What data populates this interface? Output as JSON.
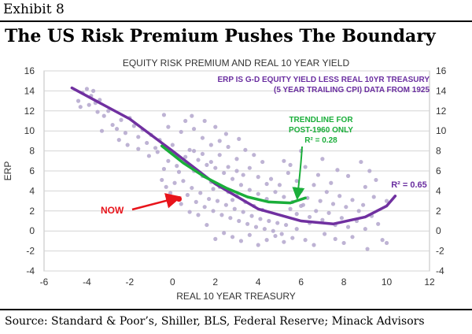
{
  "exhibit_label": "Exhibit 8",
  "headline": "The US Risk Premium Pushes The Boundary",
  "source": "Source: Standard & Poor’s, Shiller, BLS, Federal Reserve; Minack Advisors",
  "chart_data": {
    "type": "scatter",
    "title": "EQUITY RISK PREMIUM AND REAL 10 YEAR YIELD",
    "xlabel": "REAL 10 YEAR TREASURY",
    "ylabel": "ERP",
    "xlim": [
      -6,
      12
    ],
    "ylim": [
      -4,
      16
    ],
    "xticks": [
      -6,
      -4,
      -2,
      0,
      2,
      4,
      6,
      8,
      10,
      12
    ],
    "yticks": [
      -4,
      -2,
      0,
      2,
      4,
      6,
      8,
      10,
      12,
      14,
      16
    ],
    "grid": true,
    "right_axis": true,
    "annotations": {
      "note_line1": "ERP IS G-D EQUITY YIELD LESS REAL 10YR TREASURY",
      "note_line2": "(5 YEAR TRAILING CPI) DATA FROM 1925",
      "green_line1": "TRENDLINE FOR",
      "green_line2": "POST-1960 ONLY",
      "green_r2": "R² = 0.28",
      "purple_r2": "R² = 0.65",
      "now_label": "NOW"
    },
    "colors": {
      "scatter": "#b3a6cd",
      "purple": "#7030a0",
      "green": "#1aae3a",
      "now": "#e8141b",
      "note": "#6a2ea0"
    },
    "series": [
      {
        "kind": "scatter",
        "points": [
          [
            -4.4,
            13.0
          ],
          [
            -4.2,
            13.8
          ],
          [
            -4.0,
            14.2
          ],
          [
            -3.8,
            13.5
          ],
          [
            -3.6,
            12.8
          ],
          [
            -3.5,
            11.9
          ],
          [
            -4.3,
            12.4
          ],
          [
            -3.9,
            12.6
          ],
          [
            -3.7,
            14.0
          ],
          [
            -3.4,
            13.1
          ],
          [
            -3.2,
            11.5
          ],
          [
            -3.0,
            12.0
          ],
          [
            -2.8,
            10.6
          ],
          [
            -2.6,
            10.2
          ],
          [
            -3.3,
            10.0
          ],
          [
            -2.4,
            11.1
          ],
          [
            -2.2,
            9.8
          ],
          [
            -2.0,
            11.3
          ],
          [
            -1.8,
            10.5
          ],
          [
            -1.6,
            9.4
          ],
          [
            -1.4,
            10.1
          ],
          [
            -1.2,
            8.8
          ],
          [
            -1.0,
            9.6
          ],
          [
            -0.8,
            8.3
          ],
          [
            -0.6,
            9.1
          ],
          [
            -0.4,
            11.6
          ],
          [
            -0.2,
            10.4
          ],
          [
            0.0,
            8.6
          ],
          [
            0.2,
            7.5
          ],
          [
            0.4,
            9.9
          ],
          [
            0.6,
            6.8
          ],
          [
            0.8,
            8.1
          ],
          [
            1.0,
            6.0
          ],
          [
            1.2,
            7.1
          ],
          [
            1.4,
            5.5
          ],
          [
            1.6,
            6.6
          ],
          [
            1.8,
            4.9
          ],
          [
            2.0,
            6.3
          ],
          [
            2.2,
            4.4
          ],
          [
            2.4,
            5.8
          ],
          [
            2.6,
            3.9
          ],
          [
            2.8,
            5.2
          ],
          [
            3.0,
            3.5
          ],
          [
            3.2,
            4.6
          ],
          [
            3.4,
            2.9
          ],
          [
            3.6,
            4.1
          ],
          [
            3.8,
            2.5
          ],
          [
            4.0,
            3.7
          ],
          [
            4.2,
            2.1
          ],
          [
            4.4,
            3.2
          ],
          [
            -0.5,
            5.1
          ],
          [
            -0.3,
            4.4
          ],
          [
            -0.1,
            3.8
          ],
          [
            0.1,
            4.8
          ],
          [
            0.3,
            5.9
          ],
          [
            0.5,
            5.0
          ],
          [
            0.7,
            3.6
          ],
          [
            0.9,
            4.3
          ],
          [
            1.1,
            2.9
          ],
          [
            1.3,
            3.8
          ],
          [
            1.5,
            2.4
          ],
          [
            1.7,
            3.2
          ],
          [
            1.9,
            2.0
          ],
          [
            2.1,
            3.0
          ],
          [
            2.3,
            1.6
          ],
          [
            2.5,
            2.6
          ],
          [
            2.7,
            1.3
          ],
          [
            2.9,
            2.2
          ],
          [
            3.1,
            1.0
          ],
          [
            3.3,
            1.9
          ],
          [
            3.5,
            0.7
          ],
          [
            3.7,
            1.5
          ],
          [
            3.9,
            0.4
          ],
          [
            4.1,
            1.2
          ],
          [
            4.3,
            0.2
          ],
          [
            4.5,
            1.0
          ],
          [
            4.7,
            0.0
          ],
          [
            4.9,
            0.8
          ],
          [
            5.1,
            -0.3
          ],
          [
            5.3,
            0.6
          ],
          [
            2.0,
            -0.8
          ],
          [
            2.4,
            -0.2
          ],
          [
            2.8,
            -0.6
          ],
          [
            3.2,
            -1.0
          ],
          [
            3.6,
            -0.4
          ],
          [
            4.0,
            -1.4
          ],
          [
            4.4,
            -0.9
          ],
          [
            4.8,
            -0.5
          ],
          [
            5.2,
            -1.1
          ],
          [
            5.6,
            -0.7
          ],
          [
            5.5,
            2.2
          ],
          [
            5.8,
            1.7
          ],
          [
            6.1,
            2.6
          ],
          [
            6.4,
            1.4
          ],
          [
            6.7,
            2.0
          ],
          [
            7.0,
            1.1
          ],
          [
            7.3,
            1.8
          ],
          [
            7.6,
            0.6
          ],
          [
            7.9,
            1.3
          ],
          [
            8.2,
            0.4
          ],
          [
            6.0,
            4.0
          ],
          [
            6.3,
            3.3
          ],
          [
            6.6,
            4.6
          ],
          [
            6.9,
            3.0
          ],
          [
            7.2,
            3.9
          ],
          [
            7.5,
            2.7
          ],
          [
            7.8,
            3.5
          ],
          [
            8.1,
            2.4
          ],
          [
            8.4,
            3.1
          ],
          [
            8.7,
            2.0
          ],
          [
            4.6,
            5.2
          ],
          [
            5.0,
            4.6
          ],
          [
            5.4,
            5.8
          ],
          [
            5.8,
            5.0
          ],
          [
            6.2,
            6.4
          ],
          [
            4.2,
            6.9
          ],
          [
            3.8,
            7.6
          ],
          [
            3.4,
            8.1
          ],
          [
            3.0,
            7.2
          ],
          [
            2.6,
            8.4
          ],
          [
            2.2,
            9.0
          ],
          [
            1.8,
            8.6
          ],
          [
            1.4,
            9.3
          ],
          [
            1.0,
            10.2
          ],
          [
            0.6,
            11.0
          ],
          [
            5.2,
            7.0
          ],
          [
            6.0,
            8.0
          ],
          [
            7.0,
            7.2
          ],
          [
            8.8,
            6.9
          ],
          [
            9.2,
            6.0
          ],
          [
            8.6,
            1.0
          ],
          [
            9.0,
            0.2
          ],
          [
            9.3,
            1.5
          ],
          [
            9.6,
            0.7
          ],
          [
            8.4,
            -0.6
          ],
          [
            8.0,
            -1.2
          ],
          [
            7.6,
            -0.8
          ],
          [
            9.8,
            -0.9
          ],
          [
            10.0,
            -1.2
          ],
          [
            9.1,
            -1.8
          ],
          [
            7.1,
            -0.3
          ],
          [
            6.6,
            -1.4
          ],
          [
            6.2,
            -0.9
          ],
          [
            5.8,
            0.2
          ],
          [
            6.4,
            0.8
          ],
          [
            1.6,
            0.6
          ],
          [
            1.2,
            1.6
          ],
          [
            0.8,
            1.9
          ],
          [
            0.4,
            2.7
          ],
          [
            0.0,
            3.2
          ],
          [
            -0.4,
            6.2
          ],
          [
            -0.2,
            7.0
          ],
          [
            0.2,
            6.5
          ],
          [
            0.6,
            7.4
          ],
          [
            1.0,
            8.0
          ],
          [
            1.4,
            7.7
          ],
          [
            1.8,
            6.9
          ],
          [
            2.2,
            7.6
          ],
          [
            2.6,
            6.4
          ],
          [
            3.0,
            6.0
          ],
          [
            3.6,
            6.3
          ],
          [
            4.0,
            5.4
          ],
          [
            4.4,
            4.7
          ],
          [
            4.8,
            3.9
          ],
          [
            5.2,
            3.4
          ],
          [
            5.6,
            2.9
          ],
          [
            6.0,
            2.5
          ],
          [
            3.3,
            5.6
          ],
          [
            2.8,
            3.1
          ],
          [
            1.9,
            4.2
          ],
          [
            7.4,
            4.8
          ],
          [
            8.2,
            5.5
          ],
          [
            9.0,
            4.4
          ],
          [
            9.5,
            5.1
          ],
          [
            10.0,
            3.0
          ],
          [
            8.9,
            2.6
          ],
          [
            9.4,
            3.4
          ],
          [
            7.7,
            6.1
          ],
          [
            6.8,
            5.6
          ],
          [
            5.5,
            6.6
          ],
          [
            1.5,
            11.0
          ],
          [
            0.9,
            11.5
          ],
          [
            2.0,
            10.4
          ],
          [
            2.5,
            9.7
          ],
          [
            3.1,
            9.2
          ],
          [
            -0.7,
            7.9
          ],
          [
            -1.1,
            7.5
          ],
          [
            -1.6,
            8.2
          ],
          [
            -2.1,
            8.6
          ],
          [
            -2.5,
            9.1
          ]
        ]
      },
      {
        "kind": "now",
        "x": 0.3,
        "y": 3.2
      },
      {
        "kind": "trend_purple",
        "points": [
          [
            -4.7,
            14.3
          ],
          [
            -2,
            11.2
          ],
          [
            0,
            8.0
          ],
          [
            2,
            4.7
          ],
          [
            4,
            2.2
          ],
          [
            6,
            1.0
          ],
          [
            7.5,
            0.7
          ],
          [
            9,
            1.4
          ],
          [
            10,
            2.5
          ],
          [
            10.4,
            3.5
          ]
        ]
      },
      {
        "kind": "trend_green",
        "points": [
          [
            -0.5,
            8.5
          ],
          [
            0.5,
            6.8
          ],
          [
            1.5,
            5.4
          ],
          [
            2.5,
            4.3
          ],
          [
            3.5,
            3.4
          ],
          [
            4.5,
            2.9
          ],
          [
            5.5,
            2.8
          ],
          [
            6.2,
            3.3
          ]
        ]
      }
    ]
  }
}
